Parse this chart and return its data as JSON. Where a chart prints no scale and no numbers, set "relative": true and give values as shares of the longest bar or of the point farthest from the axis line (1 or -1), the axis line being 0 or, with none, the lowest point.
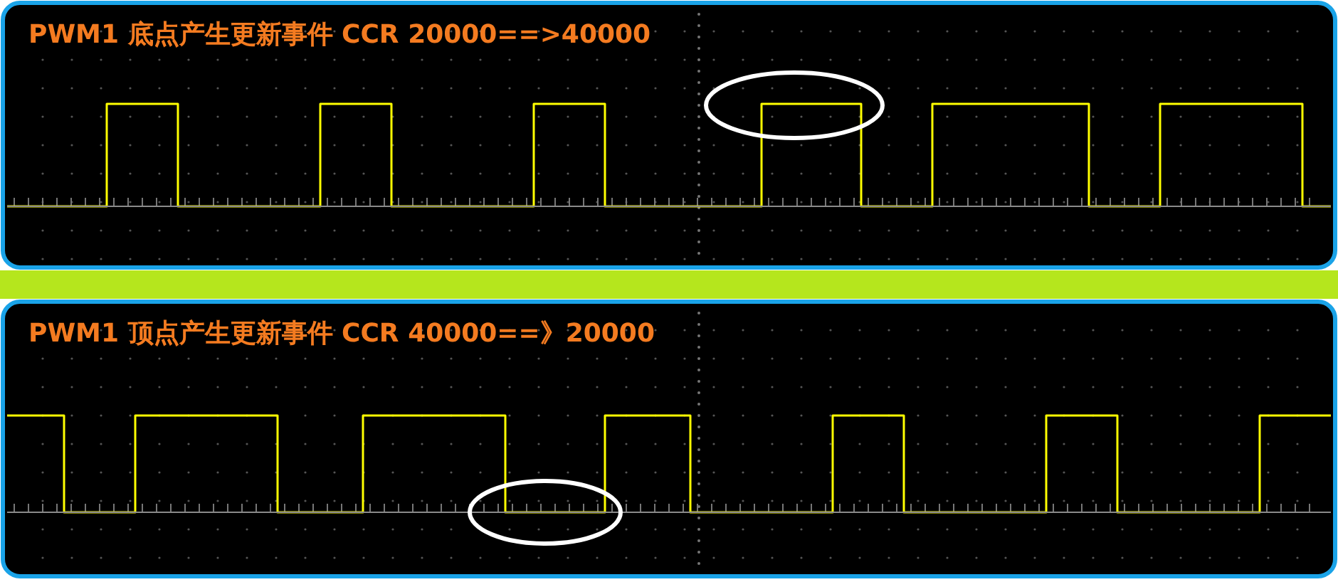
{
  "chart_data": [
    {
      "type": "step",
      "title": "PWM1 底点产生更新事件 CCR 20000==>40000",
      "relative": true,
      "color": "#ffff00",
      "categories": [
        null,
        null,
        null,
        null,
        null,
        null,
        null,
        null,
        null,
        null,
        null,
        null,
        null,
        null,
        null,
        null,
        null,
        null,
        null,
        null,
        null,
        null,
        null,
        null,
        null,
        null,
        null,
        null,
        null,
        null,
        null,
        null,
        null,
        null,
        null,
        null,
        null,
        null,
        null,
        null,
        null,
        null,
        null,
        null,
        null,
        null,
        null,
        null,
        null,
        null,
        null,
        null,
        null,
        null,
        null,
        null,
        null,
        null,
        null,
        null,
        null,
        null,
        null,
        null,
        null,
        null,
        null,
        null,
        null,
        null,
        null,
        null,
        null,
        null,
        null,
        null,
        null,
        null,
        null,
        null,
        null,
        null,
        null,
        null,
        null,
        null,
        null,
        null,
        null,
        null,
        null,
        null,
        null,
        null
      ],
      "values": [
        0,
        0,
        0,
        0,
        0,
        0,
        0,
        1,
        1,
        1,
        1,
        1,
        0,
        0,
        0,
        0,
        0,
        0,
        0,
        0,
        0,
        0,
        1,
        1,
        1,
        1,
        1,
        0,
        0,
        0,
        0,
        0,
        0,
        0,
        0,
        0,
        0,
        1,
        1,
        1,
        1,
        1,
        0,
        0,
        0,
        0,
        0,
        0,
        0,
        0,
        0,
        0,
        0,
        1,
        1,
        1,
        1,
        1,
        1,
        1,
        0,
        0,
        0,
        0,
        0,
        1,
        1,
        1,
        1,
        1,
        1,
        1,
        1,
        1,
        1,
        1,
        0,
        0,
        0,
        0,
        0,
        1,
        1,
        1,
        1,
        1,
        1,
        1,
        1,
        1,
        1,
        0,
        0,
        0
      ]
    },
    {
      "type": "step",
      "title": "PWM1 顶点产生更新事件 CCR 40000==》20000",
      "relative": true,
      "color": "#ffff00",
      "categories": [
        null,
        null,
        null,
        null,
        null,
        null,
        null,
        null,
        null,
        null,
        null,
        null,
        null,
        null,
        null,
        null,
        null,
        null,
        null,
        null,
        null,
        null,
        null,
        null,
        null,
        null,
        null,
        null,
        null,
        null,
        null,
        null,
        null,
        null,
        null,
        null,
        null,
        null,
        null,
        null,
        null,
        null,
        null,
        null,
        null,
        null,
        null,
        null,
        null,
        null,
        null,
        null,
        null,
        null,
        null,
        null,
        null,
        null,
        null,
        null,
        null,
        null,
        null,
        null,
        null,
        null,
        null,
        null,
        null,
        null,
        null,
        null,
        null,
        null,
        null,
        null,
        null,
        null,
        null,
        null,
        null,
        null,
        null,
        null,
        null,
        null,
        null,
        null,
        null,
        null,
        null,
        null,
        null,
        null
      ],
      "values": [
        1,
        1,
        1,
        1,
        0,
        0,
        0,
        0,
        0,
        1,
        1,
        1,
        1,
        1,
        1,
        1,
        1,
        1,
        1,
        0,
        0,
        0,
        0,
        0,
        0,
        1,
        1,
        1,
        1,
        1,
        1,
        1,
        1,
        1,
        1,
        0,
        0,
        0,
        0,
        0,
        0,
        0,
        1,
        1,
        1,
        1,
        1,
        1,
        0,
        0,
        0,
        0,
        0,
        0,
        0,
        0,
        0,
        0,
        1,
        1,
        1,
        1,
        1,
        0,
        0,
        0,
        0,
        0,
        0,
        0,
        0,
        0,
        0,
        1,
        1,
        1,
        1,
        1,
        0,
        0,
        0,
        0,
        0,
        0,
        0,
        0,
        0,
        0,
        1,
        1,
        1,
        1,
        1,
        1
      ]
    }
  ]
}
